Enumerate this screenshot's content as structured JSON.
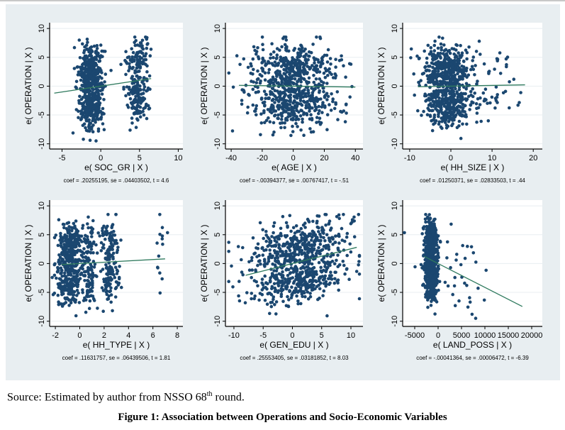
{
  "source": {
    "prefix": "Source: Estimated by author from NSSO 68",
    "sup": "th",
    "suffix": " round."
  },
  "figure_caption": "Figure 1: Association between Operations and Socio-Economic Variables",
  "colors": {
    "background": "#e8eef1",
    "plot": "#ffffff",
    "marker": "#1b4770",
    "fit": "#2f7a5e",
    "grid": "#e8eef1"
  },
  "chart_data": [
    {
      "type": "scatter",
      "ylabel": "e( OPERATION | X )",
      "xlabel": "e( SOC_GR | X )",
      "caption": "coef = .20255195, se = .04403502, t = 4.6",
      "coef": 0.20255195,
      "xlim": [
        -6.6,
        10.6
      ],
      "ylim": [
        -10.9,
        11
      ],
      "xticks": [
        -5,
        0,
        5,
        10
      ],
      "xtick_labels": [
        "-5",
        "0",
        "5",
        "10"
      ],
      "yticks": [
        -10,
        -5,
        0,
        5,
        10
      ],
      "ytick_labels": [
        "-10",
        "-5",
        "0",
        "5",
        "10"
      ],
      "fit_range": [
        -6,
        6.5
      ],
      "clusters": [
        {
          "xc": -1.3,
          "xs": 0.8,
          "n": 520
        },
        {
          "xc": 4.8,
          "xs": 0.7,
          "n": 230
        }
      ]
    },
    {
      "type": "scatter",
      "ylabel": "e( OPERATION | X )",
      "xlabel": "e( AGE | X )",
      "caption": "coef = -.00394377, se = .00767417, t = -.51",
      "coef": -0.00394377,
      "xlim": [
        -43.7,
        44.9
      ],
      "ylim": [
        -10.9,
        11
      ],
      "xticks": [
        -40,
        -20,
        0,
        20,
        40
      ],
      "xtick_labels": [
        "-40",
        "-20",
        "0",
        "20",
        "40"
      ],
      "yticks": [
        -10,
        -5,
        0,
        5,
        10
      ],
      "ytick_labels": [
        "-10",
        "-5",
        "0",
        "5",
        "10"
      ],
      "fit_range": [
        -35,
        40
      ],
      "clusters": [
        {
          "xc": 0,
          "xs": 13,
          "n": 750
        }
      ]
    },
    {
      "type": "scatter",
      "ylabel": "e( OPERATION | X )",
      "xlabel": "e( HH_SIZE | X )",
      "caption": "coef = .01250371, se = .02833503, t = .44",
      "coef": 0.01250371,
      "xlim": [
        -11.7,
        22.2
      ],
      "ylim": [
        -10.9,
        11
      ],
      "xticks": [
        -10,
        0,
        10,
        20
      ],
      "xtick_labels": [
        "-10",
        "0",
        "10",
        "20"
      ],
      "yticks": [
        -10,
        -5,
        0,
        5,
        10
      ],
      "ytick_labels": [
        "-10",
        "-5",
        "0",
        "5",
        "10"
      ],
      "fit_range": [
        -8,
        18
      ],
      "clusters": [
        {
          "xc": -1,
          "xs": 2.8,
          "n": 680
        },
        {
          "xc": 9,
          "xs": 4,
          "n": 60
        }
      ]
    },
    {
      "type": "scatter",
      "ylabel": "e( OPERATION | X )",
      "xlabel": "e( HH_TYPE | X )",
      "caption": "coef = .11631757, se = .06439506, t = 1.81",
      "coef": 0.11631757,
      "xlim": [
        -2.47,
        8.46
      ],
      "ylim": [
        -10.9,
        11
      ],
      "xticks": [
        -2,
        0,
        2,
        4,
        6,
        8
      ],
      "xtick_labels": [
        "-2",
        "0",
        "2",
        "4",
        "6",
        "8"
      ],
      "yticks": [
        -10,
        -5,
        0,
        5,
        10
      ],
      "ytick_labels": [
        "-10",
        "-5",
        "0",
        "5",
        "10"
      ],
      "fit_range": [
        -1.5,
        7
      ],
      "clusters": [
        {
          "xc": -0.9,
          "xs": 0.5,
          "n": 450
        },
        {
          "xc": 0.8,
          "xs": 0.3,
          "n": 120
        },
        {
          "xc": 2.5,
          "xs": 0.35,
          "n": 170
        },
        {
          "xc": 6.7,
          "xs": 0.3,
          "n": 14
        }
      ]
    },
    {
      "type": "scatter",
      "ylabel": "e( OPERATION | X )",
      "xlabel": "e( GEN_EDU | X )",
      "caption": "coef = .25553405, se = .03181852, t = 8.03",
      "coef": 0.25553405,
      "xlim": [
        -11.45,
        12.06
      ],
      "ylim": [
        -10.9,
        11
      ],
      "xticks": [
        -10,
        -5,
        0,
        5,
        10
      ],
      "xtick_labels": [
        "-10",
        "-5",
        "0",
        "5",
        "10"
      ],
      "yticks": [
        -10,
        -5,
        0,
        5,
        10
      ],
      "ytick_labels": [
        "-10",
        "-5",
        "0",
        "5",
        "10"
      ],
      "fit_range": [
        -8,
        11
      ],
      "clusters": [
        {
          "xc": 1,
          "xs": 4,
          "n": 750
        }
      ]
    },
    {
      "type": "scatter",
      "ylabel": "e( OPERATION | X )",
      "xlabel": "e( LAND_POSS | X )",
      "caption": "coef = -.00041364, se = .00006472, t = -6.39",
      "coef": -0.00041364,
      "xlim": [
        -7576,
        22270
      ],
      "ylim": [
        -10.9,
        11
      ],
      "xticks": [
        -5000,
        0,
        5000,
        10000,
        15000,
        20000
      ],
      "xtick_labels": [
        "-5000",
        "0",
        "5000",
        "10000",
        "15000",
        "20000"
      ],
      "yticks": [
        -10,
        -5,
        0,
        5,
        10
      ],
      "ytick_labels": [
        "-10",
        "-5",
        "0",
        "5",
        "10"
      ],
      "fit_range": [
        -3000,
        18000
      ],
      "clusters": [
        {
          "xc": -1500,
          "xs": 700,
          "n": 680
        },
        {
          "xc": 4000,
          "xs": 3500,
          "n": 45
        }
      ]
    }
  ]
}
